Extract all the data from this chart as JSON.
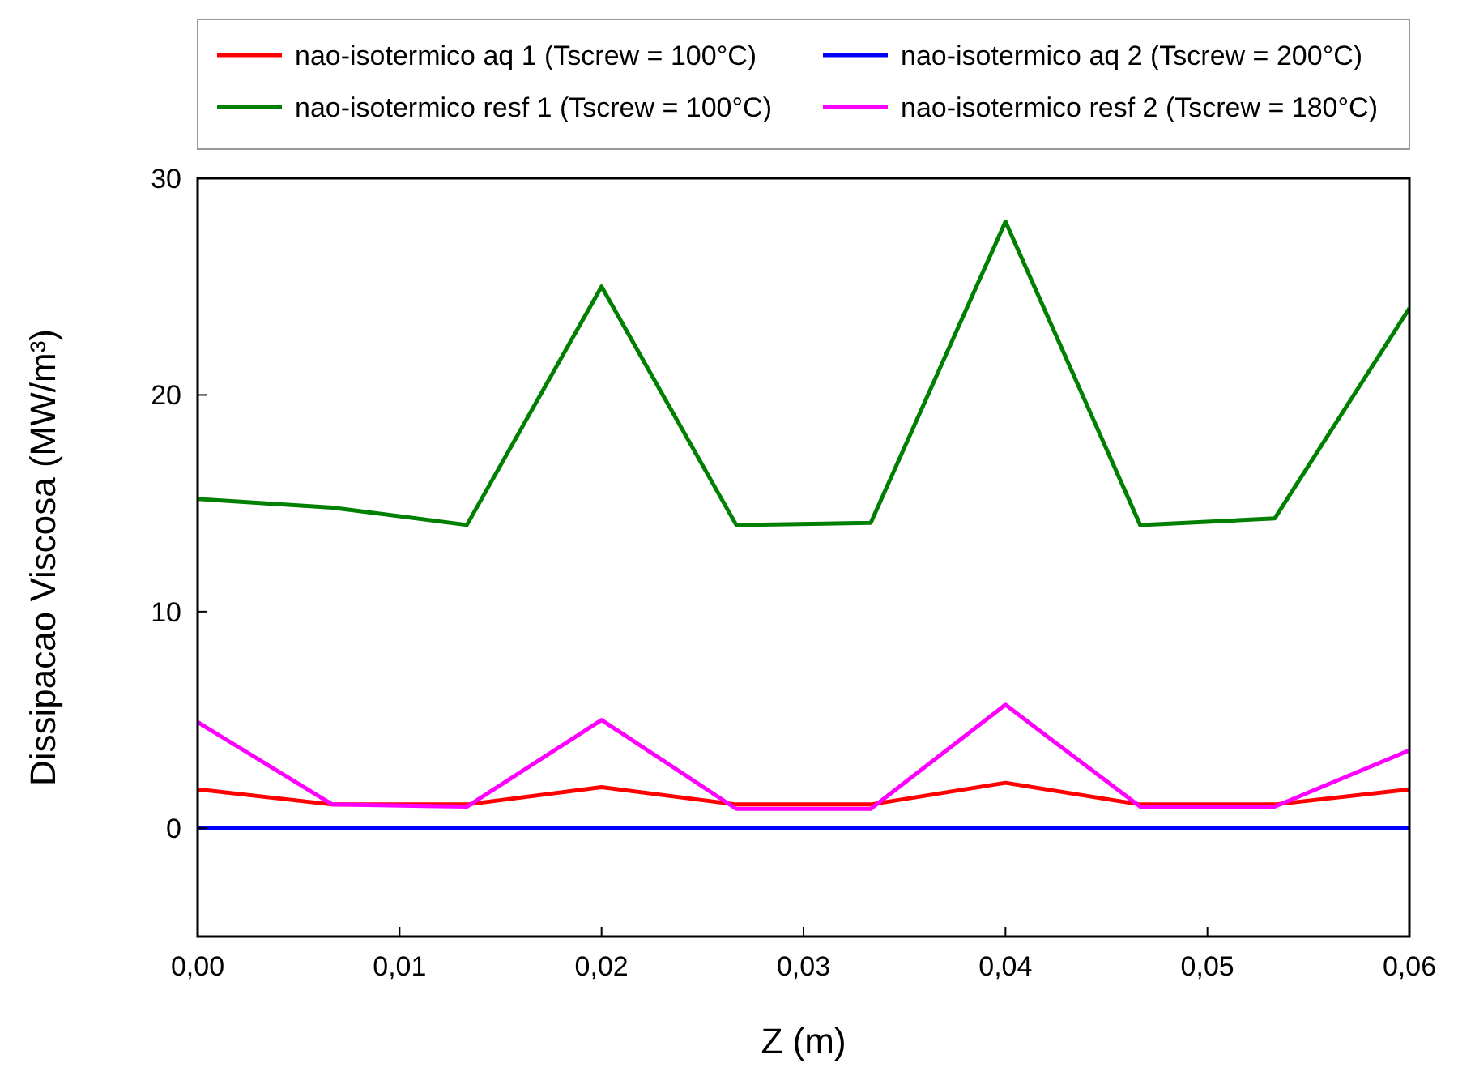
{
  "chart_data": {
    "type": "line",
    "xlabel": "Z (m)",
    "ylabel": "Dissipacao Viscosa (MW/m³)",
    "x": [
      0,
      0.00667,
      0.01333,
      0.02,
      0.02667,
      0.03333,
      0.04,
      0.04667,
      0.05333,
      0.06
    ],
    "series": [
      {
        "name": "nao-isotermico aq 1 (Tscrew = 100°C)",
        "color": "#ff0000",
        "values": [
          1.8,
          1.1,
          1.1,
          1.9,
          1.1,
          1.1,
          2.1,
          1.1,
          1.1,
          1.8
        ]
      },
      {
        "name": "nao-isotermico aq 2 (Tscrew = 200°C)",
        "color": "#0000ff",
        "values": [
          0,
          0,
          0,
          0,
          0,
          0,
          0,
          0,
          0,
          0
        ]
      },
      {
        "name": "nao-isotermico resf 1 (Tscrew = 100°C)",
        "color": "#008000",
        "values": [
          15.2,
          14.8,
          14.0,
          25,
          14.0,
          14.1,
          28.0,
          14.0,
          14.3,
          24.0
        ]
      },
      {
        "name": "nao-isotermico resf 2 (Tscrew = 180°C)",
        "color": "#ff00ff",
        "values": [
          4.9,
          1.1,
          1.0,
          5.0,
          0.9,
          0.9,
          5.7,
          1.0,
          1.0,
          3.6
        ]
      }
    ],
    "xlim": [
      0,
      0.06
    ],
    "xticks": [
      {
        "value": 0,
        "label": "0,00"
      },
      {
        "value": 0.01,
        "label": "0,01"
      },
      {
        "value": 0.02,
        "label": "0,02"
      },
      {
        "value": 0.03,
        "label": "0,03"
      },
      {
        "value": 0.04,
        "label": "0,04"
      },
      {
        "value": 0.05,
        "label": "0,05"
      },
      {
        "value": 0.06,
        "label": "0,06"
      }
    ],
    "ylim": [
      -5,
      30
    ],
    "yticks": [
      0,
      10,
      20,
      30
    ],
    "legend": "top",
    "grid": false,
    "marker": "none",
    "line_style": "solid"
  }
}
